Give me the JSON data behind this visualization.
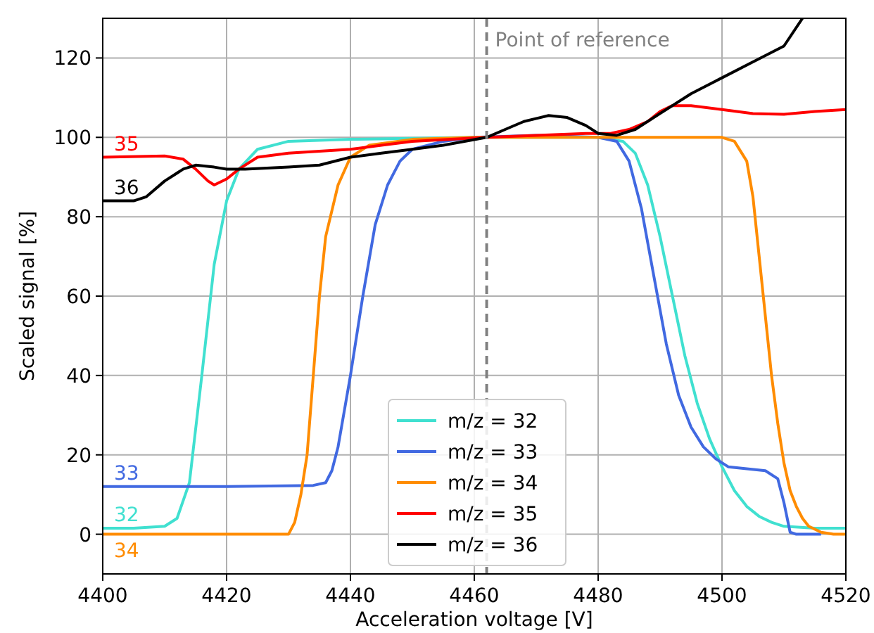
{
  "chart_data": {
    "type": "line",
    "xlabel": "Acceleration voltage [V]",
    "ylabel": "Scaled signal [%]",
    "xlim": [
      4400,
      4520
    ],
    "xticks": [
      4400,
      4420,
      4440,
      4460,
      4480,
      4500,
      4520
    ],
    "ylim": [
      -10,
      130
    ],
    "yticks": [
      0,
      20,
      40,
      60,
      80,
      100,
      120
    ],
    "grid": true,
    "legend": "bottom",
    "line_style": "solid",
    "ref_lines": [
      {
        "axis": "x",
        "value": 4462,
        "label": "Point of reference",
        "color": "#808080",
        "line_style": "dashed"
      }
    ],
    "annotations": [
      "32",
      "33",
      "34",
      "35",
      "36"
    ],
    "series": [
      {
        "name": "m/z = 32",
        "color": "#40e0d0",
        "x": [
          4400,
          4405,
          4410,
          4412,
          4414,
          4416,
          4418,
          4420,
          4422,
          4425,
          4430,
          4440,
          4460,
          4480,
          4484,
          4486,
          4488,
          4490,
          4492,
          4494,
          4496,
          4498,
          4500,
          4502,
          4504,
          4506,
          4508,
          4510,
          4515,
          4520
        ],
        "values": [
          1.5,
          1.5,
          2,
          4,
          13,
          40,
          68,
          84,
          92,
          97,
          99,
          99.5,
          100,
          100,
          99,
          96,
          88,
          75,
          60,
          45,
          33,
          24,
          17,
          11,
          7,
          4.5,
          3,
          2,
          1.5,
          1.5
        ]
      },
      {
        "name": "m/z = 33",
        "color": "#4169e1",
        "x": [
          4400,
          4420,
          4434,
          4436,
          4437,
          4438,
          4440,
          4442,
          4444,
          4446,
          4448,
          4450,
          4455,
          4460,
          4470,
          4480,
          4483,
          4485,
          4487,
          4489,
          4491,
          4493,
          4495,
          4497,
          4499,
          4501,
          4504,
          4507,
          4509,
          4510,
          4511,
          4512,
          4516
        ],
        "values": [
          12,
          12,
          12.3,
          13,
          16,
          22,
          40,
          60,
          78,
          88,
          94,
          97,
          99,
          100,
          100.5,
          100,
          99,
          94,
          82,
          65,
          48,
          35,
          27,
          22,
          19,
          17,
          16.5,
          16,
          14,
          8,
          0.5,
          0,
          0
        ]
      },
      {
        "name": "m/z = 34",
        "color": "#ff8c00",
        "x": [
          4400,
          4430,
          4431,
          4432,
          4433,
          4434,
          4435,
          4436,
          4438,
          4440,
          4443,
          4450,
          4460,
          4500,
          4502,
          4504,
          4505,
          4506,
          4507,
          4508,
          4509,
          4510,
          4511,
          4512,
          4513,
          4514,
          4516,
          4518,
          4520
        ],
        "values": [
          0,
          0,
          3,
          10,
          20,
          40,
          60,
          75,
          88,
          95,
          98,
          99.5,
          100,
          100,
          99,
          94,
          85,
          70,
          55,
          40,
          28,
          18,
          11,
          7,
          4,
          2,
          0.5,
          0,
          0
        ]
      },
      {
        "name": "m/z = 35",
        "color": "#ff0000",
        "x": [
          4400,
          4410,
          4413,
          4415,
          4417,
          4418,
          4420,
          4422,
          4425,
          4430,
          4440,
          4445,
          4450,
          4462,
          4470,
          4478,
          4482,
          4485,
          4488,
          4490,
          4492,
          4495,
          4500,
          4505,
          4510,
          4515,
          4520
        ],
        "values": [
          95,
          95.3,
          94.5,
          92,
          89,
          88,
          89.5,
          92,
          95,
          96,
          97,
          98,
          99,
          100,
          100.5,
          101,
          101,
          102,
          104,
          106.5,
          108,
          108,
          107,
          106,
          105.8,
          106.5,
          107
        ]
      },
      {
        "name": "m/z = 36",
        "color": "#000000",
        "x": [
          4400,
          4405,
          4407,
          4410,
          4413,
          4415,
          4418,
          4420,
          4423,
          4430,
          4435,
          4440,
          4445,
          4450,
          4455,
          4462,
          4465,
          4468,
          4472,
          4475,
          4478,
          4480,
          4483,
          4486,
          4490,
          4495,
          4500,
          4505,
          4510,
          4513
        ],
        "values": [
          84,
          84,
          85,
          89,
          92,
          93,
          92.5,
          92,
          92,
          92.5,
          93,
          95,
          96,
          97,
          98,
          100,
          102,
          104,
          105.5,
          105,
          103,
          101,
          100.5,
          102,
          106,
          111,
          115,
          119,
          123,
          130
        ]
      }
    ]
  }
}
